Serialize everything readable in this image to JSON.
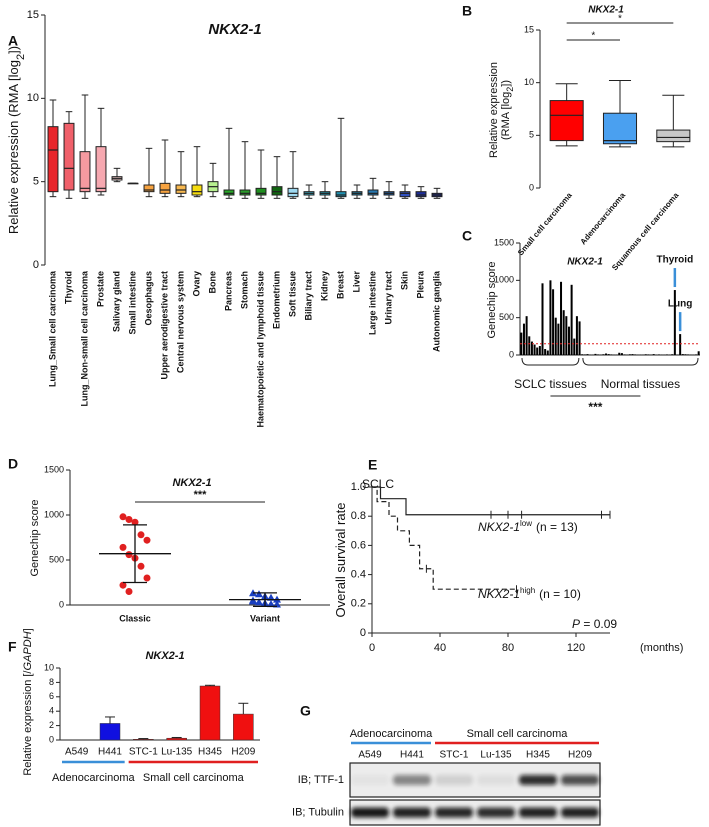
{
  "chart_data": [
    {
      "panel": "A",
      "type": "box",
      "title": "NKX2-1",
      "ylabel": [
        [
          "Relative expression (RMA [log",
          "2",
          "])"
        ]
      ],
      "categories": [
        "Lung_Small cell carcinoma",
        "Thyroid",
        "Lung_Non-small cell carcinoma",
        "Prostate",
        "Salivary gland",
        "Small intestine",
        "Oesophagus",
        "Upper aerodigestive tract",
        "Central nervous system",
        "Ovary",
        "Bone",
        "Pancreas",
        "Stomach",
        "Haematopoietic and lymphoid tissue",
        "Endometrium",
        "Soft tissue",
        "Biliary tract",
        "Kidney",
        "Breast",
        "Liver",
        "Large intestine",
        "Urinary tract",
        "Skin",
        "Pleura",
        "Autonomic ganglia"
      ],
      "boxes": [
        [
          4.1,
          4.4,
          6.9,
          8.3,
          9.9
        ],
        [
          4.0,
          4.5,
          5.8,
          8.5,
          9.2
        ],
        [
          4.0,
          4.4,
          4.6,
          6.8,
          10.2
        ],
        [
          4.2,
          4.4,
          4.6,
          7.1,
          9.4
        ],
        [
          5.0,
          5.1,
          5.2,
          5.3,
          5.8
        ],
        [
          4.9,
          4.9,
          4.9,
          4.9,
          4.9
        ],
        [
          4.1,
          4.4,
          4.5,
          4.8,
          7.0
        ],
        [
          4.1,
          4.3,
          4.5,
          4.9,
          7.5
        ],
        [
          4.1,
          4.3,
          4.5,
          4.8,
          6.8
        ],
        [
          4.1,
          4.2,
          4.4,
          4.8,
          7.1
        ],
        [
          4.1,
          4.4,
          4.7,
          5.0,
          6.1
        ],
        [
          4.0,
          4.2,
          4.3,
          4.5,
          8.2
        ],
        [
          4.0,
          4.2,
          4.3,
          4.5,
          7.4
        ],
        [
          4.0,
          4.2,
          4.3,
          4.6,
          6.9
        ],
        [
          4.0,
          4.2,
          4.4,
          4.7,
          6.5
        ],
        [
          4.0,
          4.1,
          4.3,
          4.6,
          6.8
        ],
        [
          4.0,
          4.2,
          4.3,
          4.4,
          4.8
        ],
        [
          4.0,
          4.2,
          4.3,
          4.4,
          5.0
        ],
        [
          4.0,
          4.1,
          4.2,
          4.4,
          8.8
        ],
        [
          4.0,
          4.2,
          4.3,
          4.4,
          4.8
        ],
        [
          4.0,
          4.2,
          4.3,
          4.5,
          5.2
        ],
        [
          4.0,
          4.2,
          4.3,
          4.4,
          5.0
        ],
        [
          4.0,
          4.1,
          4.3,
          4.4,
          4.8
        ],
        [
          4.0,
          4.1,
          4.2,
          4.4,
          4.7
        ],
        [
          4.0,
          4.1,
          4.2,
          4.3,
          4.6
        ]
      ],
      "colors": [
        "#e8262b",
        "#f0606a",
        "#f59aa0",
        "#f6a8b0",
        "#f9d0d0",
        "#f9d0d0",
        "#f7a340",
        "#f7a340",
        "#f7b850",
        "#f5dc10",
        "#b8f090",
        "#28a828",
        "#2a9c2a",
        "#209020",
        "#116611",
        "#9ed8f0",
        "#3ab0c8",
        "#28a0b8",
        "#2090b0",
        "#2080a8",
        "#2878b0",
        "#2060a8",
        "#3050c0",
        "#1e2e9a",
        "#1a2680"
      ],
      "highlight_index": 0,
      "highlight_color": "#e02020",
      "ylim": [
        0,
        15
      ],
      "yticks": [
        0,
        5,
        10,
        15
      ]
    },
    {
      "panel": "B",
      "type": "box",
      "title": "NKX2-1",
      "ylabel": [
        [
          "Relative expression"
        ],
        [
          "(RMA [log",
          "2",
          "])"
        ]
      ],
      "categories": [
        "Small cell carcinoma",
        "Adenocarcinoma",
        "Squamous cell carcinoma"
      ],
      "boxes": [
        [
          4.0,
          4.5,
          6.9,
          8.3,
          9.9
        ],
        [
          3.9,
          4.2,
          4.5,
          7.1,
          10.2
        ],
        [
          3.9,
          4.4,
          4.8,
          5.5,
          8.8
        ]
      ],
      "colors": [
        "#ff0000",
        "#4aa0f0",
        "#c8c8c8"
      ],
      "significance": [
        {
          "from": 0,
          "to": 2,
          "label": "*"
        },
        {
          "from": 0,
          "to": 1,
          "label": "*"
        }
      ],
      "ylim": [
        0,
        15
      ],
      "yticks": [
        0,
        5,
        10,
        15
      ]
    },
    {
      "panel": "C",
      "type": "bar",
      "title": "NKX2-1",
      "ylabel": [
        [
          "Genechip score"
        ]
      ],
      "values": [
        300,
        420,
        520,
        250,
        180,
        140,
        100,
        120,
        960,
        80,
        60,
        1000,
        880,
        500,
        420,
        980,
        600,
        520,
        380,
        940,
        220,
        520,
        450,
        10,
        8,
        12,
        6,
        5,
        15,
        8,
        6,
        10,
        20,
        12,
        8,
        5,
        6,
        30,
        25,
        8,
        6,
        10,
        12,
        8,
        5,
        6,
        5,
        10,
        8,
        6,
        12,
        5,
        8,
        6,
        5,
        8,
        6,
        10,
        870,
        6,
        280,
        12,
        10,
        8,
        6,
        5,
        8,
        50
      ],
      "color": "#000000",
      "threshold": 150,
      "threshold_color": "#e02020",
      "groups": [
        {
          "label": "SCLC tissues",
          "from": 0,
          "to": 22
        },
        {
          "label": "Normal tissues",
          "from": 23,
          "to": 67
        }
      ],
      "significance": "***",
      "markers": [
        {
          "label": "Thyroid",
          "index": 58
        },
        {
          "label": "Lung",
          "index": 60
        }
      ],
      "marker_color": "#3a8fd8",
      "ylim": [
        0,
        1500
      ],
      "yticks": [
        0,
        500,
        1000,
        1500
      ]
    },
    {
      "panel": "D",
      "type": "dotplot",
      "title": "NKX2-1",
      "ylabel": [
        [
          "Genechip score"
        ]
      ],
      "categories": [
        "Classic",
        "Variant"
      ],
      "points": [
        [
          980,
          950,
          920,
          780,
          720,
          640,
          560,
          520,
          430,
          300,
          220,
          150
        ],
        [
          130,
          120,
          95,
          80,
          60,
          40,
          30,
          20,
          10,
          5,
          50
        ]
      ],
      "means": [
        570,
        60
      ],
      "sd": [
        320,
        75
      ],
      "colors": [
        "#e02020",
        "#1a3fc0"
      ],
      "markers": [
        "circle",
        "triangle"
      ],
      "significance": "***",
      "ylim": [
        0,
        1500
      ],
      "yticks": [
        0,
        500,
        1000,
        1500
      ]
    },
    {
      "panel": "E",
      "type": "survival",
      "title": "SCLC",
      "ylabel": [
        [
          "Overall survival rate"
        ]
      ],
      "xlabel": "(months)",
      "series": [
        {
          "gene": "NKX2-1",
          "sup": "low",
          "n": "(n = 13)",
          "dash": false,
          "x": [
            0,
            5,
            5,
            20,
            20,
            140
          ],
          "y": [
            1,
            1,
            0.92,
            0.92,
            0.81,
            0.81
          ],
          "censor_x": [
            70,
            80,
            88,
            135,
            140
          ],
          "censor_y": [
            0.81,
            0.81,
            0.81,
            0.81,
            0.81
          ]
        },
        {
          "gene": "NKX2-1",
          "sup": "high",
          "n": "(n = 10)",
          "dash": true,
          "x": [
            0,
            3,
            3,
            10,
            10,
            15,
            15,
            22,
            22,
            28,
            28,
            36,
            36,
            85
          ],
          "y": [
            1,
            1,
            0.9,
            0.9,
            0.8,
            0.8,
            0.7,
            0.7,
            0.6,
            0.6,
            0.44,
            0.44,
            0.3,
            0.3
          ],
          "censor_x": [
            32,
            85
          ],
          "censor_y": [
            0.44,
            0.3
          ]
        }
      ],
      "annotation": [
        "P",
        " = 0.09"
      ],
      "xlim": [
        0,
        140
      ],
      "xticks": [
        0,
        40,
        80,
        120
      ],
      "ylim": [
        0,
        1
      ],
      "yticks": [
        0,
        0.2,
        0.4,
        0.6,
        0.8,
        {
          "value": 1,
          "label": "1.0"
        }
      ]
    },
    {
      "panel": "F",
      "type": "bar_error",
      "title": "NKX2-1",
      "ylabel": [
        [
          "Relative expression [/",
          "GAPDH",
          "]"
        ]
      ],
      "categories": [
        "A549",
        "H441",
        "STC-1",
        "Lu-135",
        "H345",
        "H209"
      ],
      "values": [
        0,
        2.3,
        0.1,
        0.25,
        7.5,
        3.6
      ],
      "errors": [
        0,
        0.9,
        0.1,
        0.1,
        0.1,
        1.5
      ],
      "colors": [
        "#1010e0",
        "#1010e0",
        "#f01010",
        "#f01010",
        "#f01010",
        "#f01010"
      ],
      "groups": [
        {
          "label": "Adenocarcinoma",
          "from": 0,
          "to": 1,
          "color": "#3a8fd8"
        },
        {
          "label": "Small cell carcinoma",
          "from": 2,
          "to": 5,
          "color": "#e02020"
        }
      ],
      "ylim": [
        0,
        10
      ],
      "yticks": [
        0,
        2,
        4,
        6,
        8,
        10
      ]
    }
  ],
  "blot": {
    "panel": "G",
    "groups": [
      {
        "label": "Adenocarcinoma",
        "from": 0,
        "to": 1,
        "color": "#3a8fd8"
      },
      {
        "label": "Small cell carcinoma",
        "from": 2,
        "to": 5,
        "color": "#e02020"
      }
    ],
    "lanes": [
      "A549",
      "H441",
      "STC-1",
      "Lu-135",
      "H345",
      "H209"
    ],
    "rows": [
      "IB; TTF-1",
      "IB; Tubulin"
    ]
  }
}
